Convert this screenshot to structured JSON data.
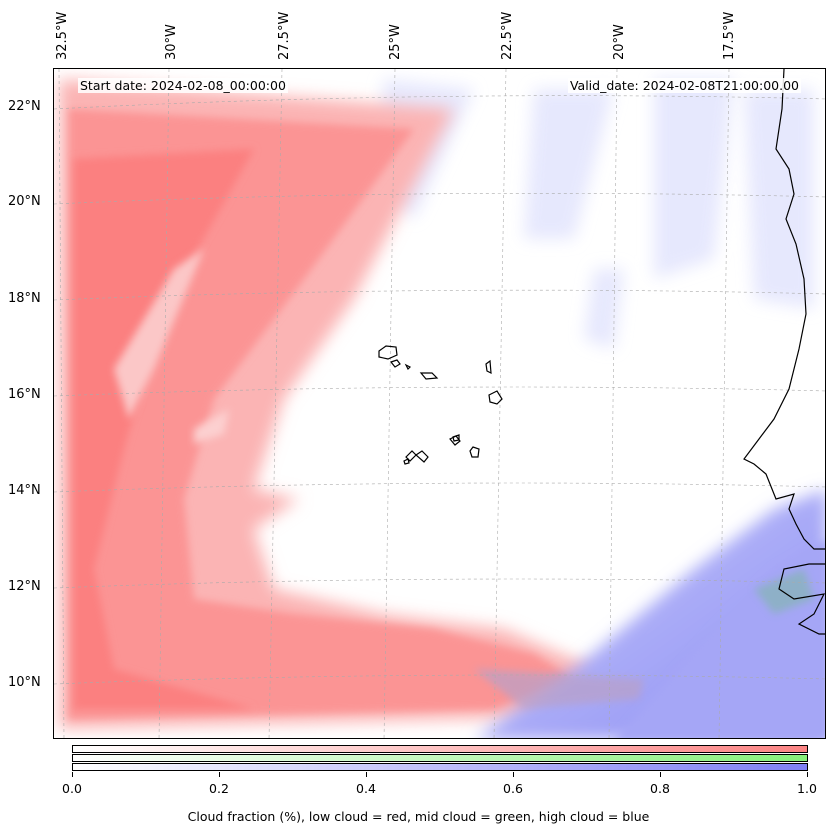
{
  "map": {
    "start_date": "Start date: 2024-02-08_00:00:00",
    "valid_date": "Valid_date: 2024-02-08T21:00:00.00",
    "lon_labels": [
      "32.5°W",
      "30°W",
      "27.5°W",
      "25°W",
      "22.5°W",
      "20°W",
      "17.5°W"
    ],
    "lat_labels": [
      "22°N",
      "20°N",
      "18°N",
      "16°N",
      "14°N",
      "12°N",
      "10°N"
    ],
    "extent": {
      "lon_min": -32.5,
      "lon_max": -15.8,
      "lat_min": 8.9,
      "lat_max": 22.8
    },
    "colors": {
      "low_cloud": "#fb8484",
      "mid_cloud": "#86f07a",
      "high_cloud": "#8080f5",
      "coastline": "#000000"
    }
  },
  "colorbar": {
    "ticks": [
      "0.0",
      "0.2",
      "0.4",
      "0.6",
      "0.8",
      "1.0"
    ],
    "label": "Cloud fraction (%), low cloud = red, mid cloud = green, high cloud = blue"
  }
}
